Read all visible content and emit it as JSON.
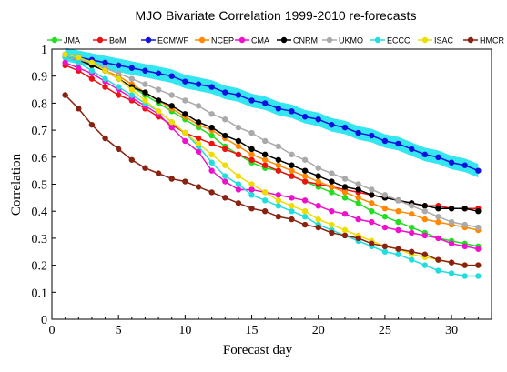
{
  "chart_data": {
    "type": "line",
    "title": "MJO Bivariate Correlation 1999-2010 re-forecasts",
    "xlabel": "Forecast day",
    "ylabel": "Correlation",
    "xlim": [
      0,
      33
    ],
    "ylim": [
      0,
      1
    ],
    "xticks": [
      0,
      5,
      10,
      15,
      20,
      25,
      30
    ],
    "yticks": [
      0,
      0.1,
      0.2,
      0.3,
      0.4,
      0.5,
      0.6,
      0.7,
      0.8,
      0.9,
      1
    ],
    "grid": false,
    "legend_position": "top",
    "x": [
      1,
      2,
      3,
      4,
      5,
      6,
      7,
      8,
      9,
      10,
      11,
      12,
      13,
      14,
      15,
      16,
      17,
      18,
      19,
      20,
      21,
      22,
      23,
      24,
      25,
      26,
      27,
      28,
      29,
      30,
      31,
      32
    ],
    "series": [
      {
        "name": "JMA",
        "color": "#22dd22",
        "values": [
          0.97,
          0.96,
          0.94,
          0.92,
          0.89,
          0.86,
          0.83,
          0.8,
          0.77,
          0.74,
          0.71,
          0.68,
          0.64,
          0.61,
          0.58,
          0.56,
          0.55,
          0.53,
          0.51,
          0.49,
          0.47,
          0.45,
          0.43,
          0.4,
          0.38,
          0.36,
          0.34,
          0.32,
          0.3,
          0.29,
          0.28,
          0.27
        ]
      },
      {
        "name": "BoM",
        "color": "#ee1111",
        "values": [
          0.94,
          0.92,
          0.89,
          0.86,
          0.83,
          0.81,
          0.78,
          0.75,
          0.72,
          0.69,
          0.67,
          0.65,
          0.63,
          0.61,
          0.59,
          0.57,
          0.55,
          0.53,
          0.51,
          0.5,
          0.49,
          0.48,
          0.47,
          0.46,
          0.45,
          0.44,
          0.43,
          0.42,
          0.42,
          0.41,
          0.41,
          0.41
        ]
      },
      {
        "name": "ECMWF",
        "color": "#1111dd",
        "band": 0.025,
        "values": [
          0.98,
          0.97,
          0.96,
          0.95,
          0.94,
          0.93,
          0.92,
          0.91,
          0.9,
          0.88,
          0.87,
          0.86,
          0.84,
          0.83,
          0.81,
          0.8,
          0.78,
          0.77,
          0.75,
          0.74,
          0.72,
          0.71,
          0.69,
          0.68,
          0.66,
          0.65,
          0.63,
          0.61,
          0.6,
          0.58,
          0.57,
          0.55
        ]
      },
      {
        "name": "NCEP",
        "color": "#ff8800",
        "values": [
          0.97,
          0.96,
          0.94,
          0.92,
          0.9,
          0.87,
          0.84,
          0.81,
          0.78,
          0.75,
          0.72,
          0.7,
          0.67,
          0.64,
          0.61,
          0.59,
          0.57,
          0.55,
          0.53,
          0.51,
          0.49,
          0.47,
          0.45,
          0.43,
          0.41,
          0.4,
          0.39,
          0.37,
          0.36,
          0.35,
          0.34,
          0.33
        ]
      },
      {
        "name": "CMA",
        "color": "#ee11cc",
        "values": [
          0.95,
          0.93,
          0.91,
          0.88,
          0.85,
          0.82,
          0.79,
          0.76,
          0.71,
          0.66,
          0.62,
          0.55,
          0.51,
          0.48,
          0.48,
          0.47,
          0.46,
          0.45,
          0.44,
          0.42,
          0.4,
          0.39,
          0.37,
          0.36,
          0.34,
          0.33,
          0.32,
          0.31,
          0.3,
          0.28,
          0.27,
          0.26
        ]
      },
      {
        "name": "CNRM",
        "color": "#000000",
        "values": [
          0.97,
          0.96,
          0.94,
          0.92,
          0.89,
          0.86,
          0.84,
          0.81,
          0.79,
          0.76,
          0.73,
          0.71,
          0.68,
          0.66,
          0.63,
          0.61,
          0.59,
          0.57,
          0.55,
          0.53,
          0.51,
          0.49,
          0.48,
          0.46,
          0.45,
          0.44,
          0.43,
          0.42,
          0.41,
          0.41,
          0.41,
          0.4
        ]
      },
      {
        "name": "UKMO",
        "color": "#aaaaaa",
        "values": [
          0.97,
          0.96,
          0.95,
          0.93,
          0.91,
          0.89,
          0.87,
          0.85,
          0.83,
          0.81,
          0.79,
          0.76,
          0.74,
          0.71,
          0.69,
          0.66,
          0.64,
          0.61,
          0.59,
          0.56,
          0.54,
          0.52,
          0.5,
          0.48,
          0.46,
          0.44,
          0.42,
          0.4,
          0.38,
          0.36,
          0.35,
          0.34
        ]
      },
      {
        "name": "ECCC",
        "color": "#22dddd",
        "values": [
          0.97,
          0.95,
          0.92,
          0.89,
          0.86,
          0.83,
          0.8,
          0.77,
          0.73,
          0.69,
          0.64,
          0.58,
          0.53,
          0.5,
          0.46,
          0.44,
          0.42,
          0.4,
          0.38,
          0.35,
          0.33,
          0.31,
          0.29,
          0.27,
          0.25,
          0.24,
          0.22,
          0.2,
          0.18,
          0.17,
          0.16,
          0.16
        ]
      },
      {
        "name": "ISAC",
        "color": "#eedd00",
        "values": [
          0.98,
          0.97,
          0.95,
          0.92,
          0.89,
          0.85,
          0.81,
          0.77,
          0.73,
          0.69,
          0.65,
          0.61,
          0.57,
          0.53,
          0.5,
          0.47,
          0.44,
          0.42,
          0.4,
          0.37,
          0.35,
          0.33,
          0.31,
          0.29,
          0.27,
          0.26,
          0.24,
          0.23,
          0.22,
          0.21,
          0.2,
          0.2
        ]
      },
      {
        "name": "HMCR",
        "color": "#882211",
        "values": [
          0.83,
          0.78,
          0.72,
          0.67,
          0.63,
          0.59,
          0.56,
          0.54,
          0.52,
          0.51,
          0.49,
          0.47,
          0.45,
          0.43,
          0.41,
          0.4,
          0.38,
          0.37,
          0.35,
          0.34,
          0.32,
          0.31,
          0.3,
          0.28,
          0.27,
          0.26,
          0.25,
          0.24,
          0.22,
          0.21,
          0.2,
          0.2
        ]
      }
    ]
  }
}
